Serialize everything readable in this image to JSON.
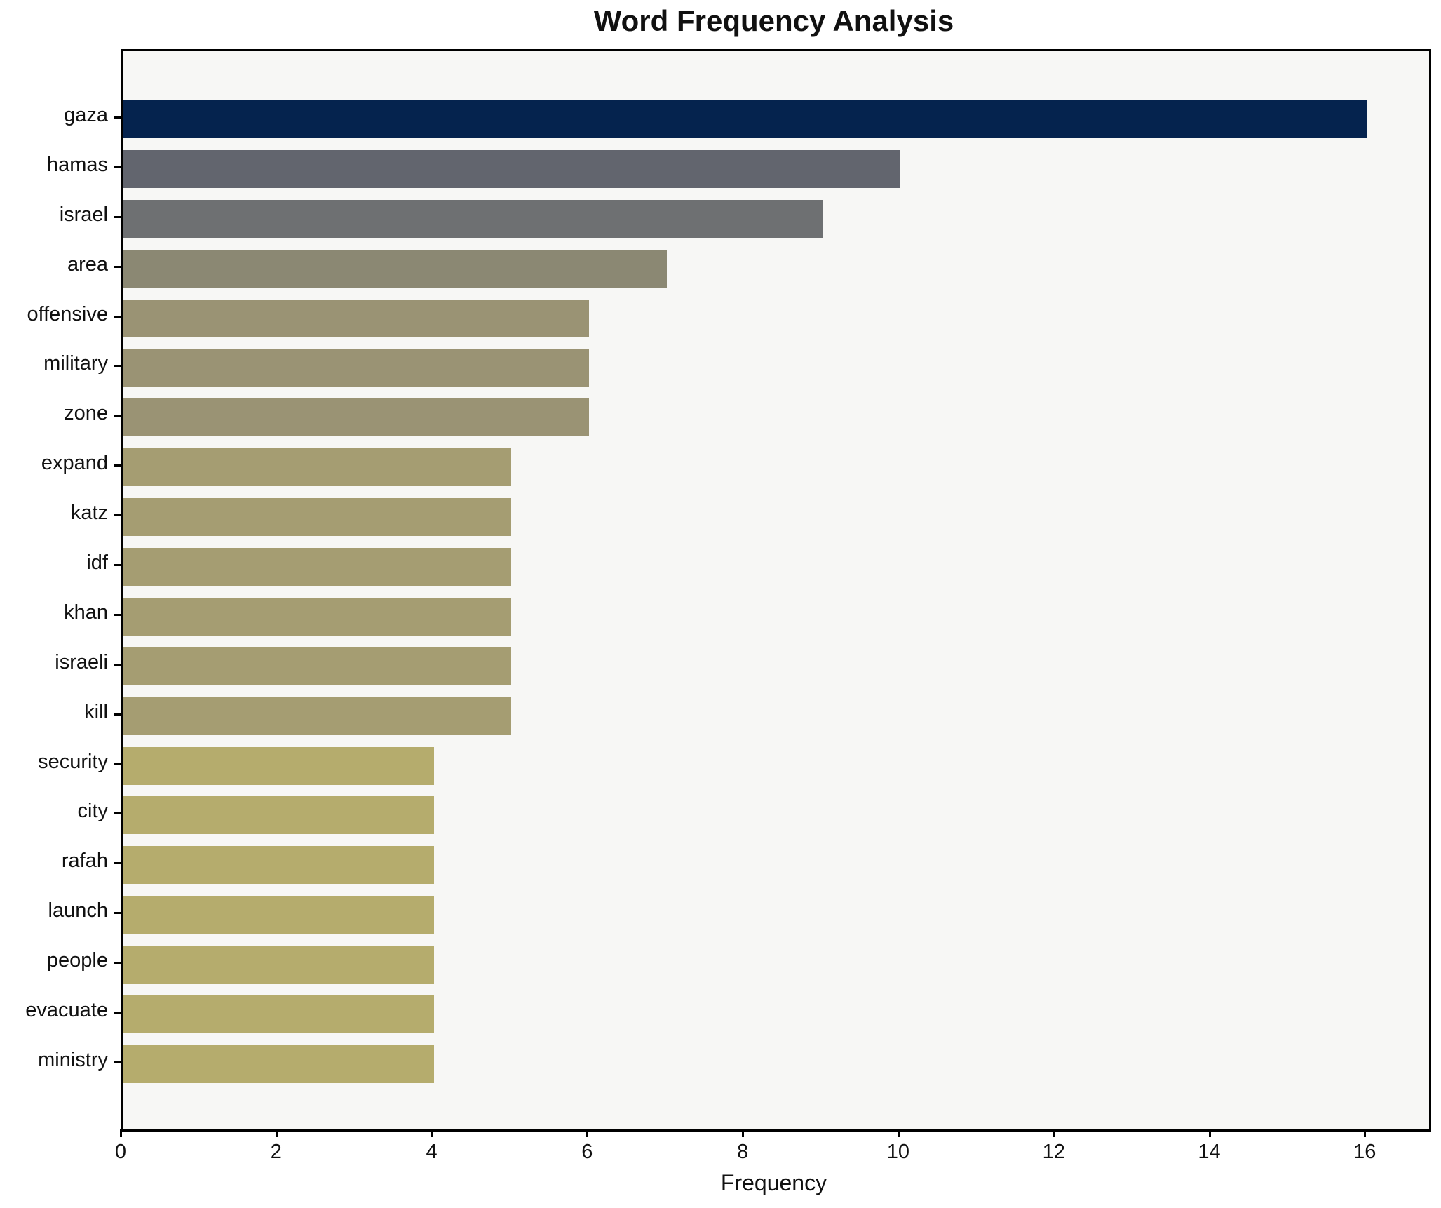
{
  "title": "Word Frequency Analysis",
  "chart_data": {
    "type": "bar",
    "orientation": "horizontal",
    "title": "Word Frequency Analysis",
    "xlabel": "Frequency",
    "ylabel": "",
    "categories": [
      "gaza",
      "hamas",
      "israel",
      "area",
      "offensive",
      "military",
      "zone",
      "expand",
      "katz",
      "idf",
      "khan",
      "israeli",
      "kill",
      "security",
      "city",
      "rafah",
      "launch",
      "people",
      "evacuate",
      "ministry"
    ],
    "values": [
      16,
      10,
      9,
      7,
      6,
      6,
      6,
      5,
      5,
      5,
      5,
      5,
      5,
      4,
      4,
      4,
      4,
      4,
      4,
      4
    ],
    "bar_colors": [
      "#05234e",
      "#62656e",
      "#6e7072",
      "#8b8873",
      "#9a9374",
      "#9a9374",
      "#9a9374",
      "#a59d72",
      "#a59d72",
      "#a59d72",
      "#a59d72",
      "#a59d72",
      "#a59d72",
      "#b5ac6d",
      "#b5ac6d",
      "#b5ac6d",
      "#b5ac6d",
      "#b5ac6d",
      "#b5ac6d",
      "#b5ac6d"
    ],
    "x_ticks": [
      0,
      2,
      4,
      6,
      8,
      10,
      12,
      14,
      16
    ],
    "xlim": [
      0,
      16.8
    ],
    "grid": false,
    "legend": null,
    "plot_background": "#f7f7f5",
    "figure_background": "#ffffff",
    "spine_color": "#000000",
    "text_color": "#111111"
  }
}
